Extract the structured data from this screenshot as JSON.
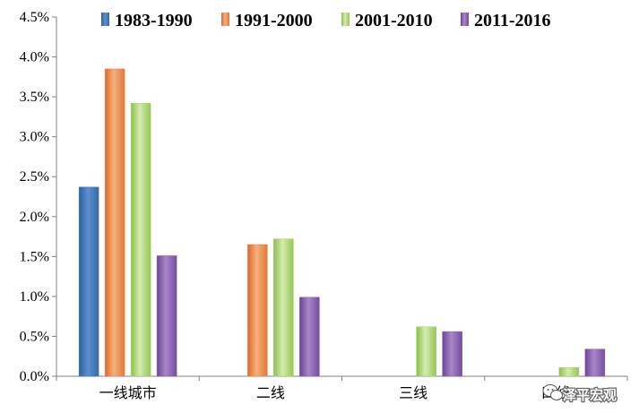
{
  "chart_data": {
    "type": "bar",
    "categories": [
      "一线城市",
      "二线",
      "三线",
      "四线"
    ],
    "series": [
      {
        "name": "1983-1990",
        "values": [
          2.37,
          null,
          null,
          null
        ]
      },
      {
        "name": "1991-2000",
        "values": [
          3.85,
          1.65,
          null,
          null
        ]
      },
      {
        "name": "2001-2010",
        "values": [
          3.42,
          1.72,
          0.62,
          0.11
        ]
      },
      {
        "name": "2011-2016",
        "values": [
          1.51,
          0.99,
          0.56,
          0.34
        ]
      }
    ],
    "title": "",
    "xlabel": "",
    "ylabel": "",
    "ylim": [
      0,
      4.5
    ],
    "y_ticks": [
      "0.0%",
      "0.5%",
      "1.0%",
      "1.5%",
      "2.0%",
      "2.5%",
      "3.0%",
      "3.5%",
      "4.0%",
      "4.5%"
    ],
    "grid": false,
    "legend_position": "top"
  },
  "colors": {
    "series": [
      "#4a7fc1",
      "#e8874a",
      "#a4cf62",
      "#8a5cad"
    ]
  },
  "watermark": {
    "text": "泽平宏观",
    "icon": "wechat-icon"
  }
}
